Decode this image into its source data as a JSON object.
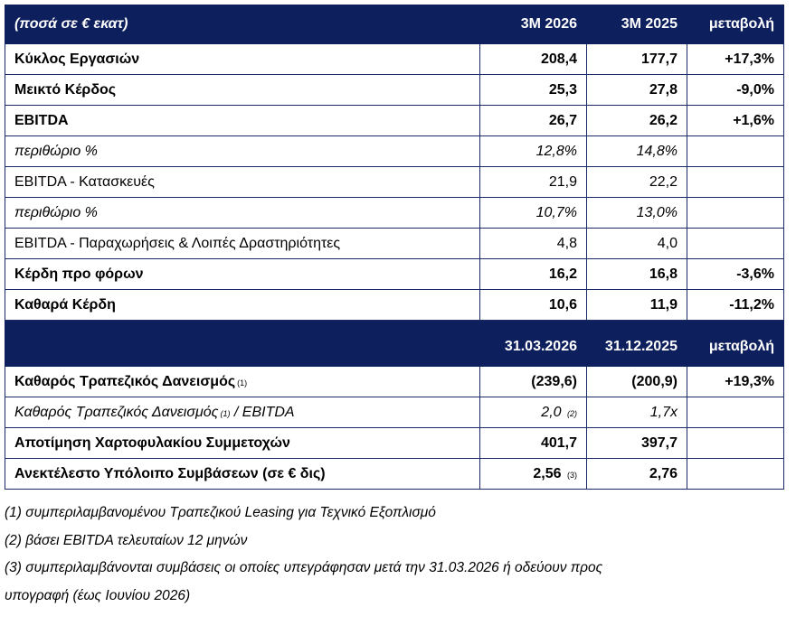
{
  "table": {
    "header1": {
      "label": "(ποσά σε € εκατ)",
      "col1": "3M 2026",
      "col2": "3M 2025",
      "col3": "μεταβολή"
    },
    "rows1": [
      {
        "label": "Κύκλος Εργασιών",
        "v1": "208,4",
        "v2": "177,7",
        "change": "+17,3%"
      },
      {
        "label": "Μεικτό Κέρδος",
        "v1": "25,3",
        "v2": "27,8",
        "change": "-9,0%"
      },
      {
        "label": "EBITDA",
        "v1": "26,7",
        "v2": "26,2",
        "change": "+1,6%"
      },
      {
        "label": "περιθώριο %",
        "v1": "12,8%",
        "v2": "14,8%",
        "change": ""
      },
      {
        "label": "EBITDA - Κατασκευές",
        "v1": "21,9",
        "v2": "22,2",
        "change": ""
      },
      {
        "label": "περιθώριο %",
        "v1": "10,7%",
        "v2": "13,0%",
        "change": ""
      },
      {
        "label": "EBITDA - Παραχωρήσεις & Λοιπές Δραστηριότητες",
        "v1": "4,8",
        "v2": "4,0",
        "change": ""
      },
      {
        "label": "Κέρδη προ φόρων",
        "v1": "16,2",
        "v2": "16,8",
        "change": "-3,6%"
      },
      {
        "label": "Καθαρά Κέρδη",
        "v1": "10,6",
        "v2": "11,9",
        "change": "-11,2%"
      }
    ],
    "header2": {
      "label": "",
      "col1": "31.03.2026",
      "col2": "31.12.2025",
      "col3": "μεταβολή"
    },
    "rows2": [
      {
        "label": "Καθαρός Τραπεζικός Δανεισμός",
        "label_note": "(1)",
        "label_suffix": "",
        "v1": "(239,6)",
        "v1_note": "",
        "v2": "(200,9)",
        "change": "+19,3%"
      },
      {
        "label": "Καθαρός Τραπεζικός Δανεισμός",
        "label_note": "(1)",
        "label_suffix": "/ EBITDA",
        "v1": "2,0",
        "v1_note": "(2)",
        "v2": "1,7x",
        "change": ""
      },
      {
        "label": "Αποτίμηση Χαρτοφυλακίου Συμμετοχών",
        "label_note": "",
        "label_suffix": "",
        "v1": "401,7",
        "v1_note": "",
        "v2": "397,7",
        "change": ""
      },
      {
        "label": "Ανεκτέλεστο Υπόλοιπο Συμβάσεων (σε € δις)",
        "label_note": "",
        "label_suffix": "",
        "v1": "2,56",
        "v1_note": "(3)",
        "v2": "2,76",
        "change": ""
      }
    ]
  },
  "notes": [
    "(1) συμπεριλαμβανομένου Τραπεζικού Leasing για Τεχνικό Εξοπλισμό",
    "(2) βάσει EBITDA τελευταίων 12 μηνών",
    "(3) συμπεριλαμβάνονται συμβάσεις οι οποίες υπεγράφησαν μετά την 31.03.2026 ή οδεύουν προς",
    "υπογραφή (έως Ιουνίου 2026)"
  ]
}
